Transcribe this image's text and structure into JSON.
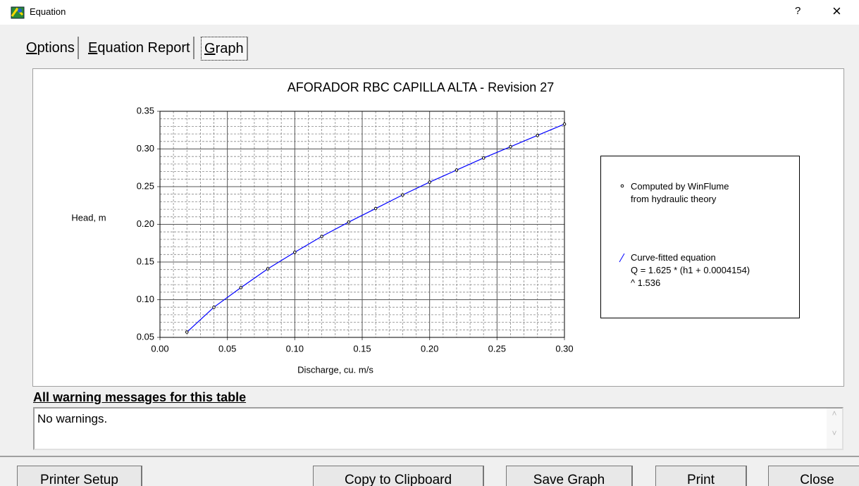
{
  "window": {
    "title": "Equation",
    "help": "?",
    "close": "×"
  },
  "tabs": [
    "Options",
    "Equation Report",
    "Graph"
  ],
  "chart_data": {
    "type": "scatter",
    "title": "AFORADOR RBC CAPILLA ALTA - Revision 27",
    "x_label": "Discharge, cu. m/s",
    "y_label": "Head, m",
    "x": [
      0.02,
      0.04,
      0.06,
      0.08,
      0.1,
      0.12,
      0.14,
      0.16,
      0.18,
      0.2,
      0.22,
      0.24,
      0.26,
      0.28,
      0.3
    ],
    "series": [
      {
        "name": "Computed by WinFlume\nfrom hydraulic theory",
        "type": "scatter",
        "color": "#000000",
        "values": [
          0.057,
          0.09,
          0.116,
          0.141,
          0.163,
          0.184,
          0.203,
          0.221,
          0.239,
          0.256,
          0.272,
          0.288,
          0.303,
          0.318,
          0.333
        ]
      },
      {
        "name": "Curve-fitted equation\nQ = 1.625 * (h1 + 0.0004154)\n^ 1.536",
        "type": "line",
        "color": "#0000ff",
        "values": [
          0.057,
          0.09,
          0.116,
          0.141,
          0.163,
          0.184,
          0.203,
          0.221,
          0.239,
          0.256,
          0.272,
          0.288,
          0.303,
          0.318,
          0.333
        ]
      }
    ],
    "xlim": [
      0,
      0.3
    ],
    "xticks": [
      {
        "value": 0,
        "label": "0.00"
      },
      0.05,
      {
        "value": 0.1,
        "label": "0.10"
      },
      0.15,
      {
        "value": 0.2,
        "label": "0.20"
      },
      0.25,
      {
        "value": 0.3,
        "label": "0.30"
      }
    ],
    "ylim": [
      0.05,
      0.35
    ],
    "yticks": [
      0.05,
      {
        "value": 0.1,
        "label": "0.10"
      },
      0.15,
      {
        "value": 0.2,
        "label": "0.20"
      },
      0.25,
      {
        "value": 0.3,
        "label": "0.30"
      },
      0.35
    ],
    "grid": true,
    "minor_grid": true,
    "legend": "right"
  },
  "warnings": {
    "heading": "All warning messages for this table",
    "text": "No warnings."
  },
  "buttons": [
    "Printer Setup",
    "Copy to Clipboard",
    "Save Graph",
    "Print",
    "Close"
  ]
}
